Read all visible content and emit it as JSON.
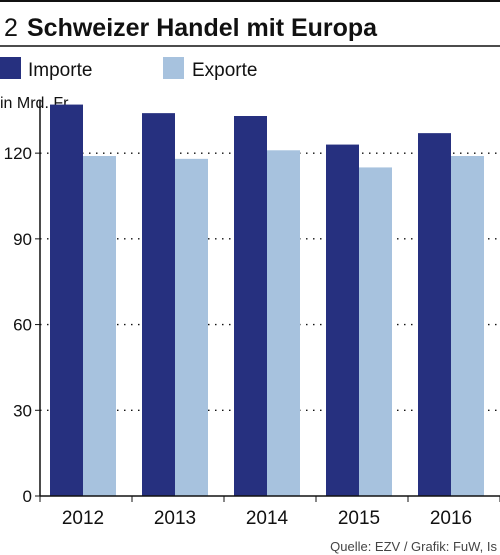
{
  "header": {
    "number": "2",
    "title": "Schweizer Handel mit Europa"
  },
  "source": "Quelle: EZV / Grafik: FuW, Is",
  "colors": {
    "importe": "#26307f",
    "exporte": "#a7c2de",
    "axis": "#111111",
    "rule": "#111111"
  },
  "chart_data": {
    "type": "bar",
    "title": "Schweizer Handel mit Europa",
    "ylabel": "in Mrd. Fr.",
    "xlabel": "",
    "categories": [
      "2012",
      "2013",
      "2014",
      "2015",
      "2016"
    ],
    "series": [
      {
        "name": "Importe",
        "values": [
          137,
          134,
          133,
          123,
          127
        ]
      },
      {
        "name": "Exporte",
        "values": [
          119,
          118,
          121,
          115,
          119
        ]
      }
    ],
    "ylim": [
      0,
      140
    ],
    "yticks": [
      0,
      30,
      60,
      90,
      120
    ],
    "grid": "dotted",
    "legend": "top-left"
  }
}
